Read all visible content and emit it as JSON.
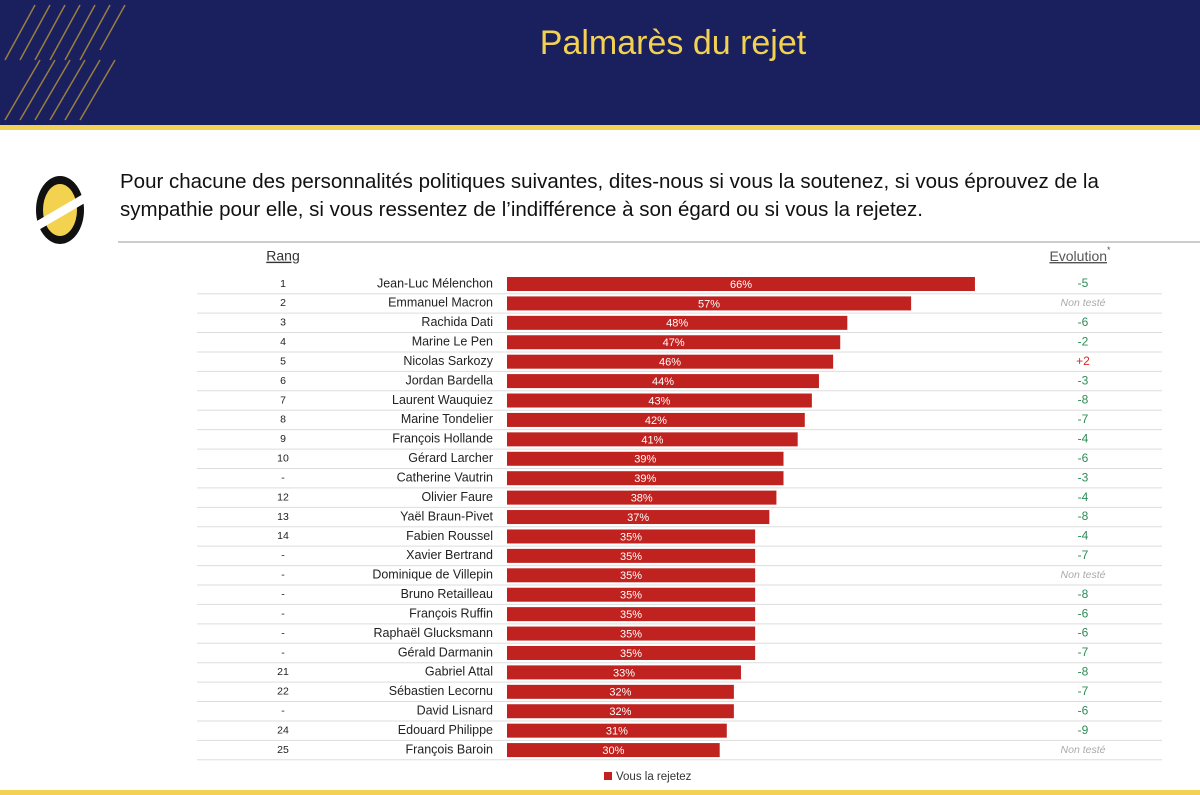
{
  "title": "Palmarès du rejet",
  "question": "Pour chacune des personnalités politiques suivantes, dites-nous si vous la soutenez, si vous éprouvez de la sympathie pour elle, si vous ressentez de l’indifférence à son égard ou si vous la rejetez.",
  "chart_data": {
    "type": "bar",
    "orientation": "horizontal",
    "rank_header": "Rang",
    "evolution_header": "Evolution",
    "evolution_marker": "*",
    "categories": [
      "Jean-Luc Mélenchon",
      "Emmanuel Macron",
      "Rachida Dati",
      "Marine Le Pen",
      "Nicolas Sarkozy",
      "Jordan Bardella",
      "Laurent Wauquiez",
      "Marine Tondelier",
      "François Hollande",
      "Gérard Larcher",
      "Catherine Vautrin",
      "Olivier Faure",
      "Yaël Braun-Pivet",
      "Fabien Roussel",
      "Xavier Bertrand",
      "Dominique de Villepin",
      "Bruno Retailleau",
      "François Ruffin",
      "Raphaël Glucksmann",
      "Gérald Darmanin",
      "Gabriel Attal",
      "Sébastien Lecornu",
      "David Lisnard",
      "Edouard Philippe",
      "François Baroin"
    ],
    "ranks": [
      "1",
      "2",
      "3",
      "4",
      "5",
      "6",
      "7",
      "8",
      "9",
      "10",
      "-",
      "12",
      "13",
      "14",
      "-",
      "-",
      "-",
      "-",
      "-",
      "-",
      "21",
      "22",
      "-",
      "24",
      "25"
    ],
    "evolution": [
      "-5",
      "Non testé",
      "-6",
      "-2",
      "+2",
      "-3",
      "-8",
      "-7",
      "-4",
      "-6",
      "-3",
      "-4",
      "-8",
      "-4",
      "-7",
      "Non testé",
      "-8",
      "-6",
      "-6",
      "-7",
      "-8",
      "-7",
      "-6",
      "-9",
      "Non testé"
    ],
    "series": [
      {
        "name": "Vous la rejetez",
        "color": "#c0221f",
        "values": [
          66,
          57,
          48,
          47,
          46,
          44,
          43,
          42,
          41,
          39,
          39,
          38,
          37,
          35,
          35,
          35,
          35,
          35,
          35,
          35,
          33,
          32,
          32,
          31,
          30
        ],
        "value_labels": [
          "66%",
          "57%",
          "48%",
          "47%",
          "46%",
          "44%",
          "43%",
          "42%",
          "41%",
          "39%",
          "39%",
          "38%",
          "37%",
          "35%",
          "35%",
          "35%",
          "35%",
          "35%",
          "35%",
          "35%",
          "33%",
          "32%",
          "32%",
          "31%",
          "30%"
        ]
      }
    ]
  }
}
